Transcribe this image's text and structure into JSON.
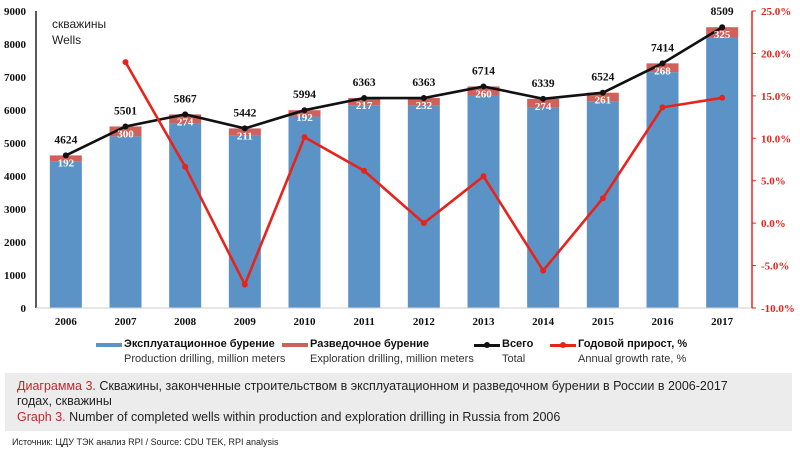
{
  "chart_data": {
    "type": "bar",
    "subtype": "stacked-bar-with-lines",
    "unit_label_ru": "скважины",
    "unit_label_en": "Wells",
    "categories": [
      "2006",
      "2007",
      "2008",
      "2009",
      "2010",
      "2011",
      "2012",
      "2013",
      "2014",
      "2015",
      "2016",
      "2017"
    ],
    "series": [
      {
        "name": "Эксплуатационное бурение",
        "name_en": "Production drilling, million meters",
        "type": "bar",
        "axis": "left",
        "color": "#5b93c7",
        "values": [
          4432,
          5201,
          5593,
          5231,
          5802,
          6146,
          6131,
          6454,
          6065,
          6263,
          7146,
          8184
        ]
      },
      {
        "name": "Разведочное бурение",
        "name_en": "Exploration drilling, million meters",
        "type": "bar",
        "axis": "left",
        "color": "#d0605a",
        "values": [
          192,
          300,
          274,
          211,
          192,
          217,
          232,
          260,
          274,
          261,
          268,
          325
        ]
      },
      {
        "name": "Всего",
        "name_en": "Total",
        "type": "line",
        "axis": "left",
        "color": "#111111",
        "values": [
          4624,
          5501,
          5867,
          5442,
          5994,
          6363,
          6363,
          6714,
          6339,
          6524,
          7414,
          8509
        ]
      },
      {
        "name": "Годовой прирост, %",
        "name_en": "Annual growth rate, %",
        "type": "line",
        "axis": "right",
        "color": "#e8231b",
        "values": [
          null,
          18.97,
          6.65,
          -7.24,
          10.14,
          6.16,
          0.0,
          5.52,
          -5.59,
          2.92,
          13.64,
          14.77
        ]
      }
    ],
    "left_axis": {
      "min": 0,
      "max": 9000,
      "step": 1000,
      "ticks": [
        "0",
        "1000",
        "2000",
        "3000",
        "4000",
        "5000",
        "6000",
        "7000",
        "8000",
        "9000"
      ]
    },
    "right_axis": {
      "min": -10,
      "max": 25,
      "step": 5,
      "ticks": [
        "-10.0%",
        "-5.0%",
        "0.0%",
        "5.0%",
        "10.0%",
        "15.0%",
        "20.0%",
        "25.0%"
      ],
      "color": "#e8231b"
    },
    "grid": false,
    "legend_position": "bottom"
  },
  "caption": {
    "ru_prefix": "Диаграмма 3.",
    "ru_text_line1": " Скважины, законченные строительством в эксплуатационном и разведочном бурении в России в 2006-2017",
    "ru_text_line2": "годах, скважины",
    "en_prefix": "Graph 3.",
    "en_text": " Number of completed wells within production and exploration drilling in Russia from 2006"
  },
  "source": "Источник: ЦДУ ТЭК анализ RPI / Source: CDU TEK, RPI analysis"
}
